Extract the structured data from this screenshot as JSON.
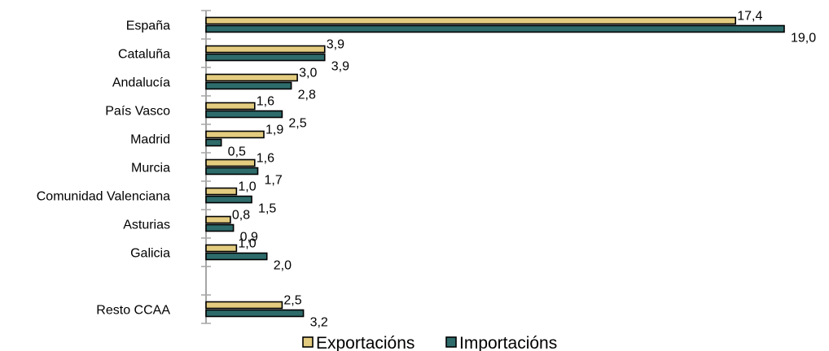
{
  "chart_data": {
    "type": "bar",
    "orientation": "horizontal",
    "categories": [
      "España",
      "Cataluña",
      "Andalucía",
      "País Vasco",
      "Madrid",
      "Murcia",
      "Comunidad Valenciana",
      "Asturias",
      "Galicia",
      "",
      "Resto CCAA"
    ],
    "series": [
      {
        "name": "Exportacións",
        "color": "#e3cc7f",
        "values": [
          17.4,
          3.9,
          3.0,
          1.6,
          1.9,
          1.6,
          1.0,
          0.8,
          1.0,
          null,
          2.5
        ]
      },
      {
        "name": "Importacións",
        "color": "#2e6b6b",
        "values": [
          19.0,
          3.9,
          2.8,
          2.5,
          0.5,
          1.7,
          1.5,
          0.9,
          2.0,
          null,
          3.2
        ]
      }
    ],
    "value_labels": [
      [
        "17,4",
        "3,9",
        "3,0",
        "1,6",
        "1,9",
        "1,6",
        "1,0",
        "0,8",
        "1,0",
        "",
        "2,5"
      ],
      [
        "19,0",
        "3,9",
        "2,8",
        "2,5",
        "0,5",
        "1,7",
        "1,5",
        "0,9",
        "2,0",
        "",
        "3,2"
      ]
    ],
    "xlim": [
      0,
      19
    ],
    "grid": false,
    "legend_position": "bottom"
  }
}
